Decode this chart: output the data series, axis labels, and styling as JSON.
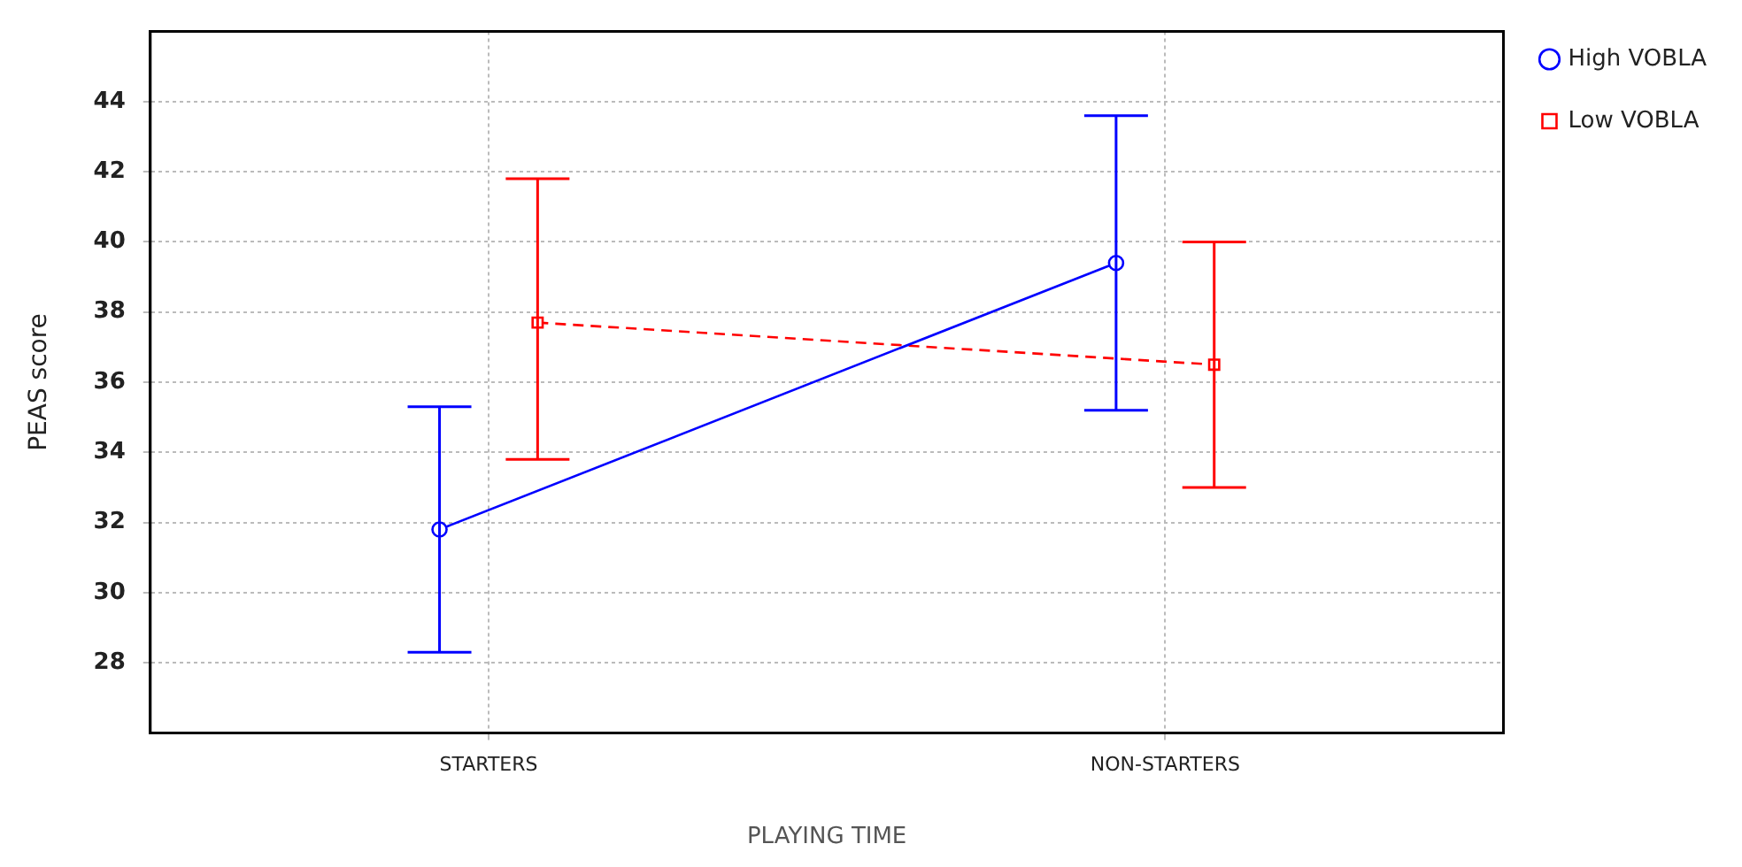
{
  "chart_data": {
    "type": "line",
    "xlabel": "PLAYING TIME",
    "ylabel": "PEAS score",
    "categories": [
      "STARTERS",
      "NON-STARTERS"
    ],
    "series": [
      {
        "name": "High VOBLA",
        "color": "#0000ff",
        "values": [
          31.8,
          39.4
        ],
        "errors": [
          [
            28.3,
            35.3
          ],
          [
            35.2,
            43.6
          ]
        ],
        "marker": "circle",
        "line_style": "solid"
      },
      {
        "name": "Low VOBLA",
        "color": "#ff0000",
        "values": [
          37.7,
          36.5
        ],
        "errors": [
          [
            33.8,
            41.8
          ],
          [
            33.0,
            40.0
          ]
        ],
        "marker": "square",
        "line_style": "dashed"
      }
    ],
    "ylim": [
      26,
      46
    ],
    "yticks": [
      28,
      30,
      32,
      34,
      36,
      38,
      40,
      42,
      44
    ],
    "grid": true,
    "legend": "top right"
  }
}
